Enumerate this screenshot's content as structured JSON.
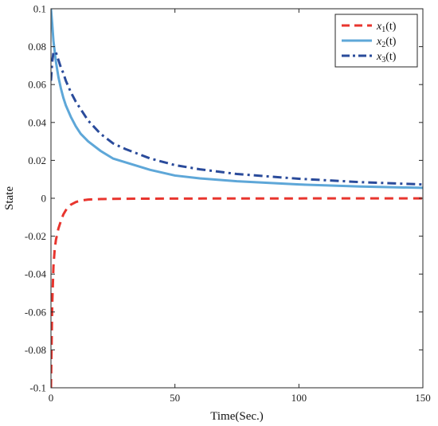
{
  "chart_data": {
    "type": "line",
    "xlabel": "Time(Sec.)",
    "ylabel": "State",
    "xlim": [
      0,
      150
    ],
    "ylim": [
      -0.1,
      0.1
    ],
    "xticks": [
      0,
      50,
      100,
      150
    ],
    "yticks": [
      -0.1,
      -0.08,
      -0.06,
      -0.04,
      -0.02,
      0,
      0.02,
      0.04,
      0.06,
      0.08,
      0.1
    ],
    "xtick_labels": [
      "0",
      "50",
      "100",
      "150"
    ],
    "ytick_labels": [
      "-0.1",
      "-0.08",
      "-0.06",
      "-0.04",
      "-0.02",
      "0",
      "0.02",
      "0.04",
      "0.06",
      "0.08",
      "0.1"
    ],
    "grid": false,
    "legend_position": "top-right",
    "series": [
      {
        "name": "x1(t)",
        "legend_main": "x",
        "legend_sub": "1",
        "legend_tail": "(t)",
        "color": "#e8352e",
        "style": "dashed",
        "x": [
          0,
          0.5,
          1,
          1.5,
          2,
          3,
          4,
          5,
          6,
          7,
          8,
          10,
          12,
          15,
          20,
          25,
          30,
          40,
          50,
          75,
          100,
          125,
          150
        ],
        "y": [
          -0.1,
          -0.056,
          -0.036,
          -0.027,
          -0.022,
          -0.016,
          -0.012,
          -0.0085,
          -0.0063,
          -0.0045,
          -0.0034,
          -0.002,
          -0.0012,
          -0.0007,
          -0.0004,
          -0.0003,
          -0.00025,
          -0.0002,
          -0.00015,
          -0.0001,
          -8e-05,
          -6e-05,
          -5e-05
        ]
      },
      {
        "name": "x2(t)",
        "legend_main": "x",
        "legend_sub": "2",
        "legend_tail": "(t)",
        "color": "#5ea7d8",
        "style": "solid",
        "x": [
          0,
          0.5,
          1,
          2,
          3,
          4,
          5,
          6,
          8,
          10,
          12,
          15,
          20,
          25,
          30,
          40,
          50,
          60,
          75,
          100,
          125,
          150
        ],
        "y": [
          0.1,
          0.092,
          0.083,
          0.072,
          0.064,
          0.058,
          0.053,
          0.049,
          0.043,
          0.038,
          0.034,
          0.03,
          0.025,
          0.021,
          0.019,
          0.015,
          0.012,
          0.0105,
          0.009,
          0.0073,
          0.0062,
          0.0055
        ]
      },
      {
        "name": "x3(t)",
        "legend_main": "x",
        "legend_sub": "3",
        "legend_tail": "(t)",
        "color": "#2a4b9b",
        "style": "dashdot",
        "x": [
          0,
          0.5,
          1,
          1.5,
          2,
          3,
          4,
          5,
          6,
          8,
          10,
          12,
          15,
          20,
          25,
          30,
          40,
          50,
          60,
          75,
          100,
          125,
          150
        ],
        "y": [
          0.062,
          0.072,
          0.077,
          0.0775,
          0.077,
          0.073,
          0.069,
          0.066,
          0.062,
          0.056,
          0.051,
          0.047,
          0.041,
          0.034,
          0.029,
          0.026,
          0.021,
          0.0175,
          0.0153,
          0.0128,
          0.0103,
          0.0085,
          0.0073
        ]
      }
    ]
  }
}
